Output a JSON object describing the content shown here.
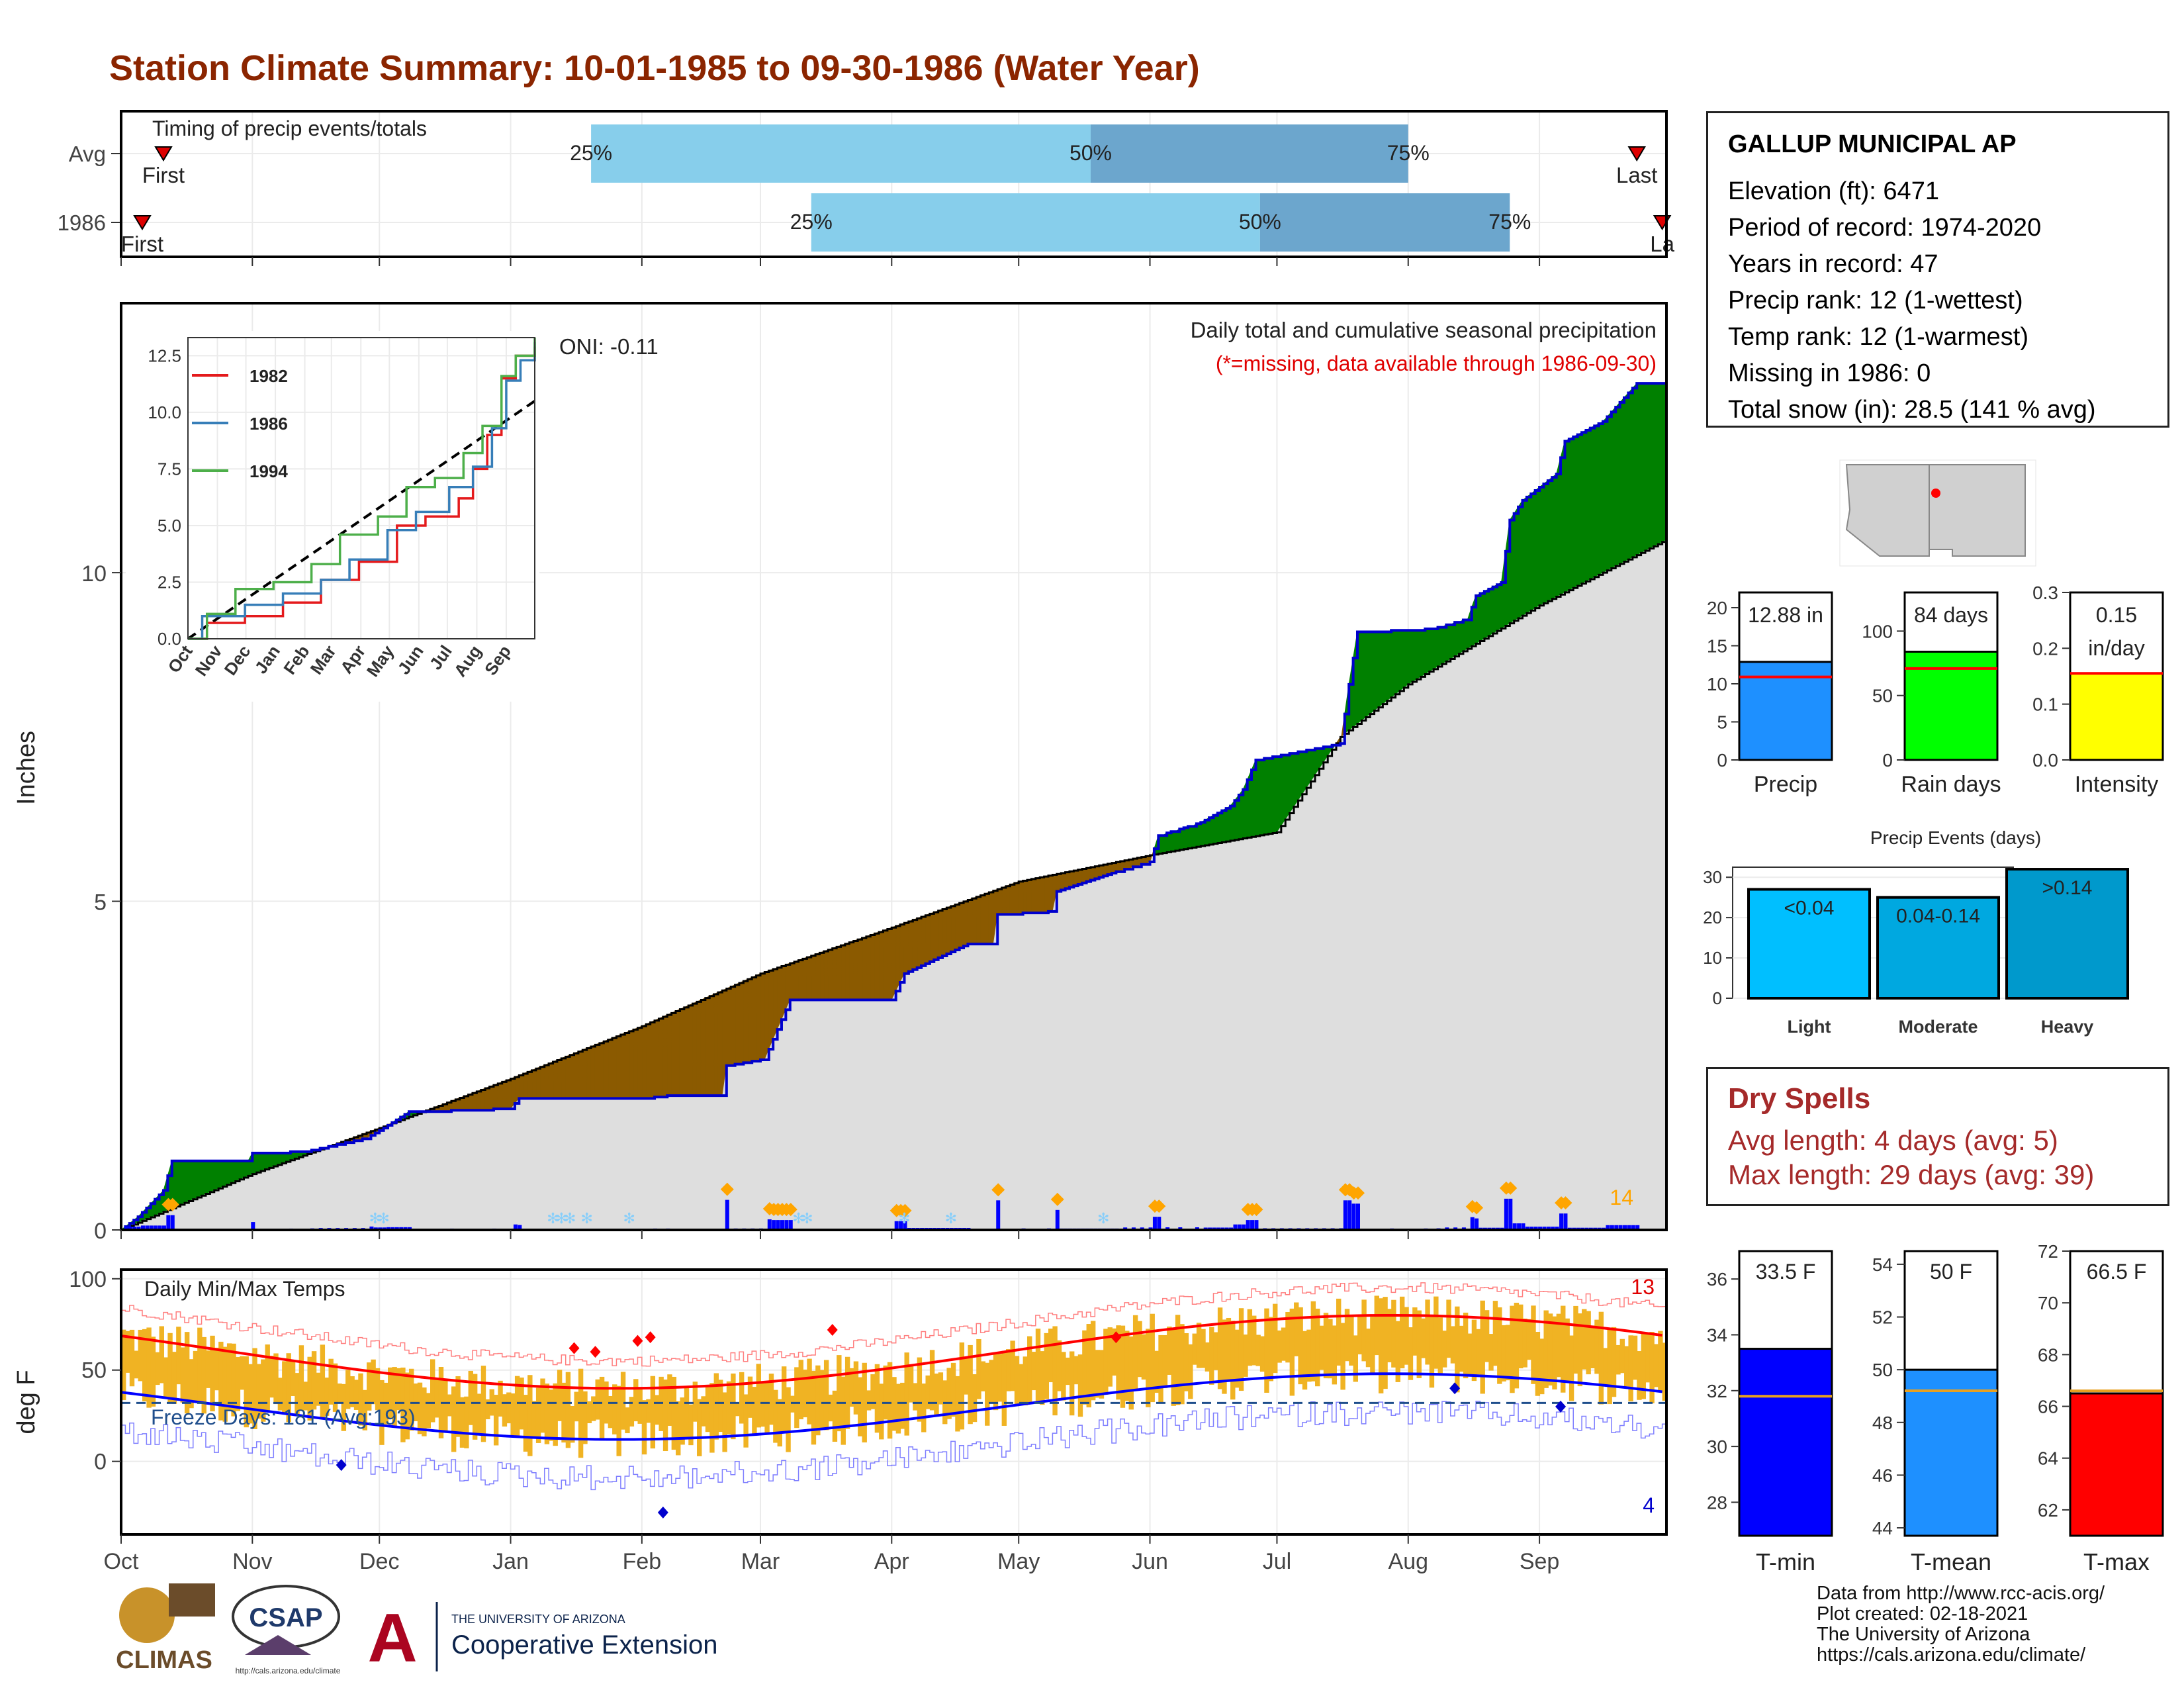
{
  "title": "Station Climate Summary: 10-01-1985 to 09-30-1986 (Water Year)",
  "timing": {
    "label": "Timing of precip events/totals",
    "rows": [
      {
        "name": "Avg",
        "first": "First",
        "last": "Last",
        "p25": "25%",
        "p50": "50%",
        "p75": "75%",
        "first_day": 10,
        "last_day": 358,
        "q25_day": 111,
        "q50_day": 229,
        "q75_day": 304
      },
      {
        "name": "1986",
        "first": "First",
        "last": "La",
        "p25": "25%",
        "p50": "50%",
        "p75": "75%",
        "first_day": 5,
        "last_day": 364,
        "q25_day": 163,
        "q50_day": 269,
        "q75_day": 328
      }
    ],
    "colors": {
      "early": "#87CEEB",
      "late": "#6CA6CD",
      "marker": "#DD0000"
    }
  },
  "station": {
    "name": "GALLUP MUNICIPAL AP",
    "lines": [
      "Elevation (ft): 6471",
      "Period of record: 1974-2020",
      "Years in record: 47",
      "Precip rank: 12 (1-wettest)",
      "Temp rank: 12 (1-warmest)",
      "Missing in 1986: 0",
      "Total snow (in): 28.5 (141 % avg)"
    ]
  },
  "main_precip": {
    "ylabel": "Inches",
    "yticks": [
      "0",
      "5",
      "10"
    ],
    "months": [
      "Oct",
      "Nov",
      "Dec",
      "Jan",
      "Feb",
      "Mar",
      "Apr",
      "May",
      "Jun",
      "Jul",
      "Aug",
      "Sep"
    ],
    "oni": "ONI: -0.11",
    "note1": "Daily total and cumulative seasonal precipitation",
    "note2": "(*=missing, data available through 1986-09-30)",
    "count_label": "14",
    "colors": {
      "avg_fill": "#DEDEDE",
      "above": "#008000",
      "below": "#8B5A00",
      "obs_line": "#0000CD",
      "bars": "#0000FF",
      "snow": "#87CEFA",
      "diamond": "#FFA500"
    }
  },
  "inset": {
    "yticks": [
      "0.0",
      "2.5",
      "5.0",
      "7.5",
      "10.0",
      "12.5"
    ],
    "months": [
      "Oct",
      "Nov",
      "Dec",
      "Jan",
      "Feb",
      "Mar",
      "Apr",
      "May",
      "Jun",
      "Jul",
      "Aug",
      "Sep"
    ],
    "legend": [
      {
        "name": "1982",
        "color": "#E41A1C"
      },
      {
        "name": "1986",
        "color": "#377EB8"
      },
      {
        "name": "1994",
        "color": "#4DAF4A"
      }
    ]
  },
  "temps": {
    "label": "Daily Min/Max Temps",
    "ylabel": "deg F",
    "yticks": [
      "0",
      "50",
      "100"
    ],
    "months": [
      "Oct",
      "Nov",
      "Dec",
      "Jan",
      "Feb",
      "Mar",
      "Apr",
      "May",
      "Jun",
      "Jul",
      "Aug",
      "Sep"
    ],
    "freeze": "Freeze Days: 181 (Avg:193)",
    "count_hi": "13",
    "count_lo": "4",
    "freeze_line": 32,
    "colors": {
      "bars": "#F0B323",
      "max_line": "#FF0000",
      "min_line": "#0000FF"
    }
  },
  "summary_bars": [
    {
      "label": "Precip",
      "value_label": "12.88 in",
      "value": 12.88,
      "avg": 10.9,
      "ymax": 22,
      "ticks": [
        "0",
        "5",
        "10",
        "15",
        "20"
      ],
      "tickvals": [
        0,
        5,
        10,
        15,
        20
      ],
      "color": "#1E90FF"
    },
    {
      "label": "Rain days",
      "value_label": "84 days",
      "value": 84,
      "avg": 71,
      "ymax": 130,
      "ticks": [
        "0",
        "50",
        "100"
      ],
      "tickvals": [
        0,
        50,
        100
      ],
      "color": "#00FF00"
    },
    {
      "label": "Intensity",
      "value_label": "0.15\nin/day",
      "value": 0.155,
      "avg": 0.155,
      "ymax": 0.3,
      "ticks": [
        "0.0",
        "0.1",
        "0.2",
        "0.3"
      ],
      "tickvals": [
        0,
        0.1,
        0.2,
        0.3
      ],
      "color": "#FFFF00"
    }
  ],
  "events": {
    "title": "Precip Events (days)",
    "ticks": [
      "0",
      "10",
      "20",
      "30"
    ],
    "bars": [
      {
        "name": "Light",
        "label": "<0.04",
        "value": 27,
        "color": "#00BFFF"
      },
      {
        "name": "Moderate",
        "label": "0.04-0.14",
        "value": 25,
        "color": "#00A8E0"
      },
      {
        "name": "Heavy",
        "label": ">0.14",
        "value": 32,
        "color": "#0099CC"
      }
    ]
  },
  "dry_spells": {
    "title": "Dry Spells",
    "avg": "Avg length: 4 days (avg: 5)",
    "max": "Max length: 29 days (avg: 39)"
  },
  "temp_bars": [
    {
      "label": "T-min",
      "value_label": "33.5 F",
      "value": 33.5,
      "avg": 31.8,
      "ymin": 26.8,
      "ymax": 37,
      "ticks": [
        "28",
        "30",
        "32",
        "34",
        "36"
      ],
      "tickvals": [
        28,
        30,
        32,
        34,
        36
      ],
      "color": "#0000FF"
    },
    {
      "label": "T-mean",
      "value_label": "50 F",
      "value": 50,
      "avg": 49.2,
      "ymin": 43.7,
      "ymax": 54.5,
      "ticks": [
        "44",
        "46",
        "48",
        "50",
        "52",
        "54"
      ],
      "tickvals": [
        44,
        46,
        48,
        50,
        52,
        54
      ],
      "color": "#1E90FF"
    },
    {
      "label": "T-max",
      "value_label": "66.5 F",
      "value": 66.5,
      "avg": 66.6,
      "ymin": 61,
      "ymax": 72,
      "ticks": [
        "62",
        "64",
        "66",
        "68",
        "70",
        "72"
      ],
      "tickvals": [
        62,
        64,
        66,
        68,
        70,
        72
      ],
      "color": "#FF0000"
    }
  ],
  "credits": [
    "Data from http://www.rcc-acis.org/",
    "Plot created: 02-18-2021",
    "The University of Arizona",
    "https://cals.arizona.edu/climate/"
  ],
  "logos": {
    "climas": "CLIMAS",
    "csap": "CSAP",
    "csap_url": "http://cals.arizona.edu/climate",
    "ua_top": "THE UNIVERSITY OF ARIZONA",
    "ua_name": "Cooperative Extension"
  }
}
